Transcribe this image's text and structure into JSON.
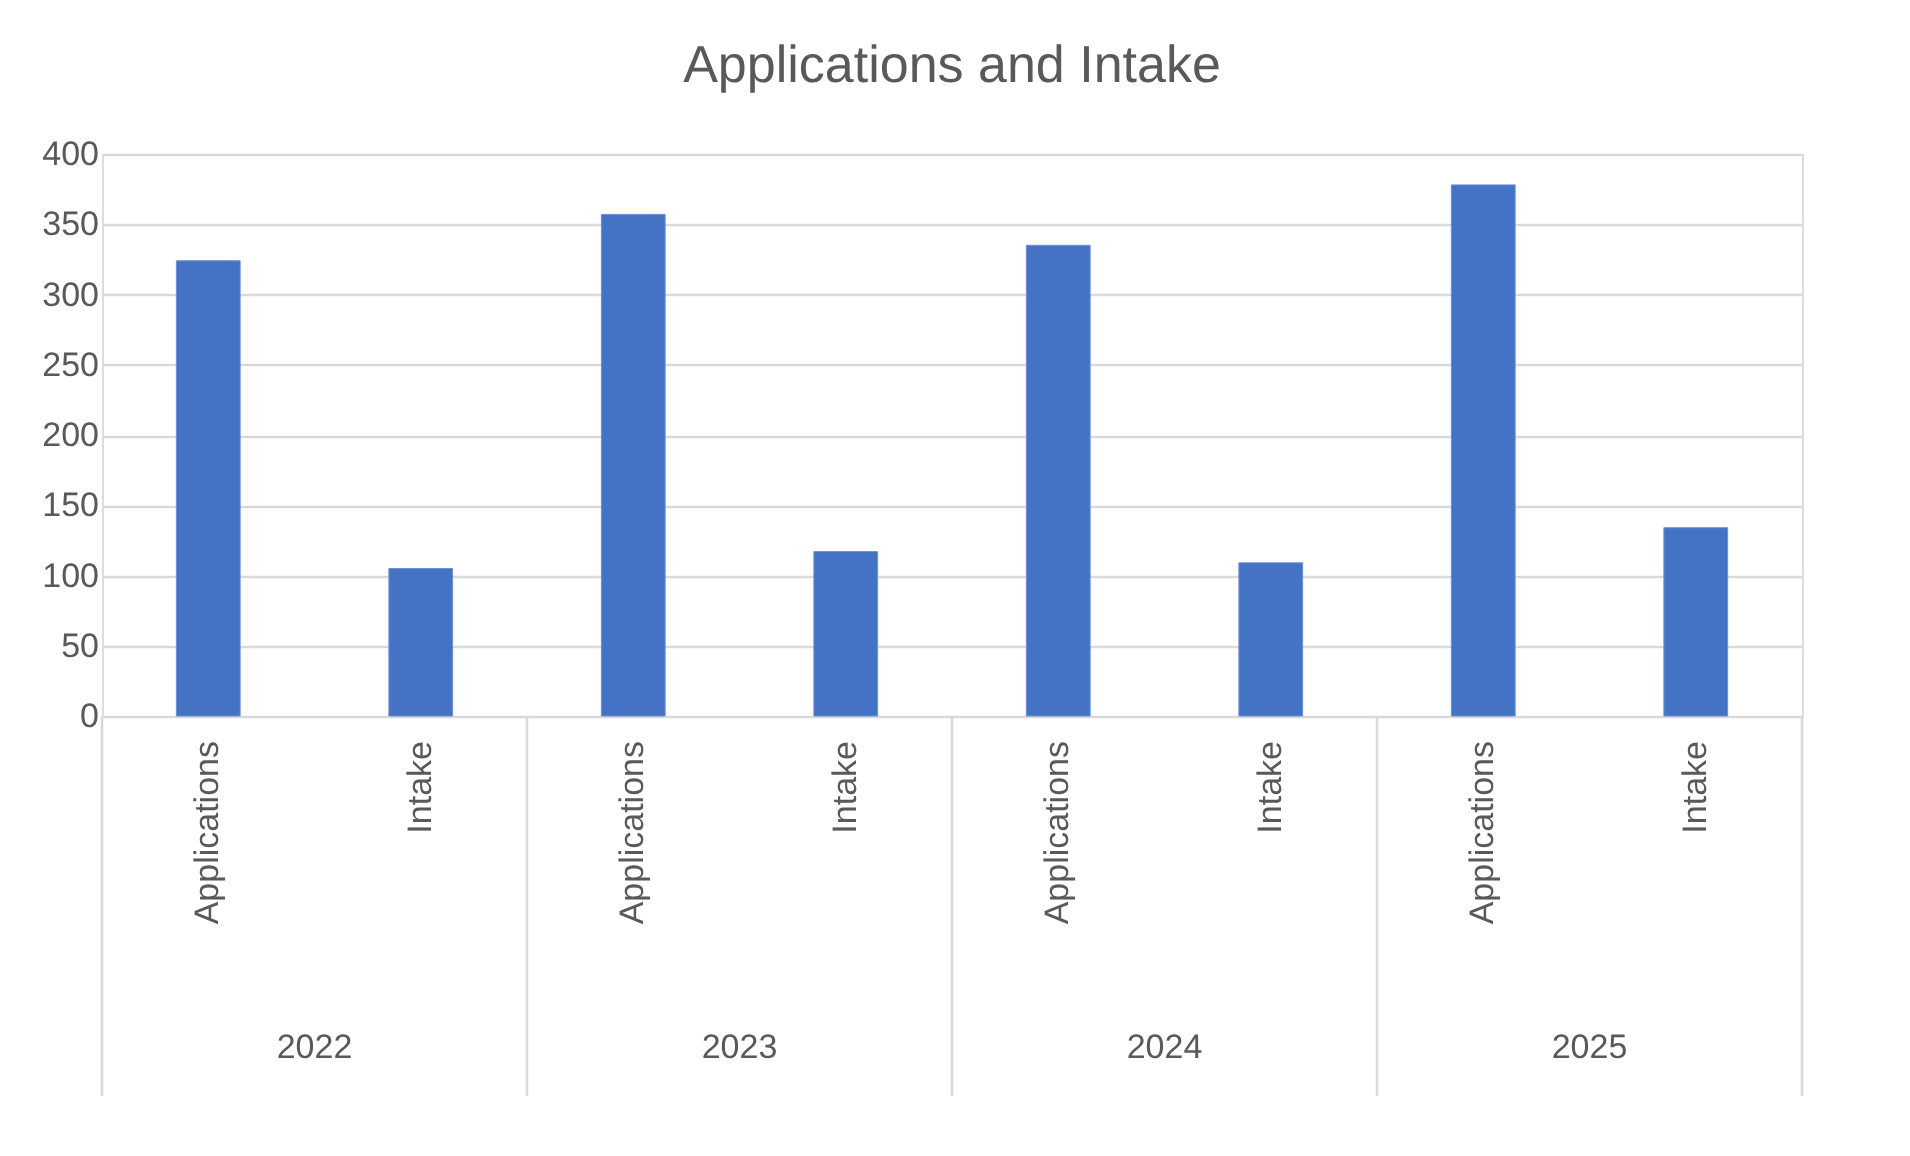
{
  "chart_data": {
    "type": "bar",
    "title": "Applications and Intake",
    "categories": [
      "Applications",
      "Intake",
      "Applications",
      "Intake",
      "Applications",
      "Intake",
      "Applications",
      "Intake"
    ],
    "values": [
      324,
      105,
      357,
      117,
      335,
      109,
      378,
      134
    ],
    "color": "#4472c4",
    "annotations": [
      "2022",
      "2023",
      "2024",
      "2025"
    ],
    "ylim": [
      0,
      400
    ],
    "yticks": [
      0,
      50,
      100,
      150,
      200,
      250,
      300,
      350,
      400
    ],
    "grid": "y"
  }
}
